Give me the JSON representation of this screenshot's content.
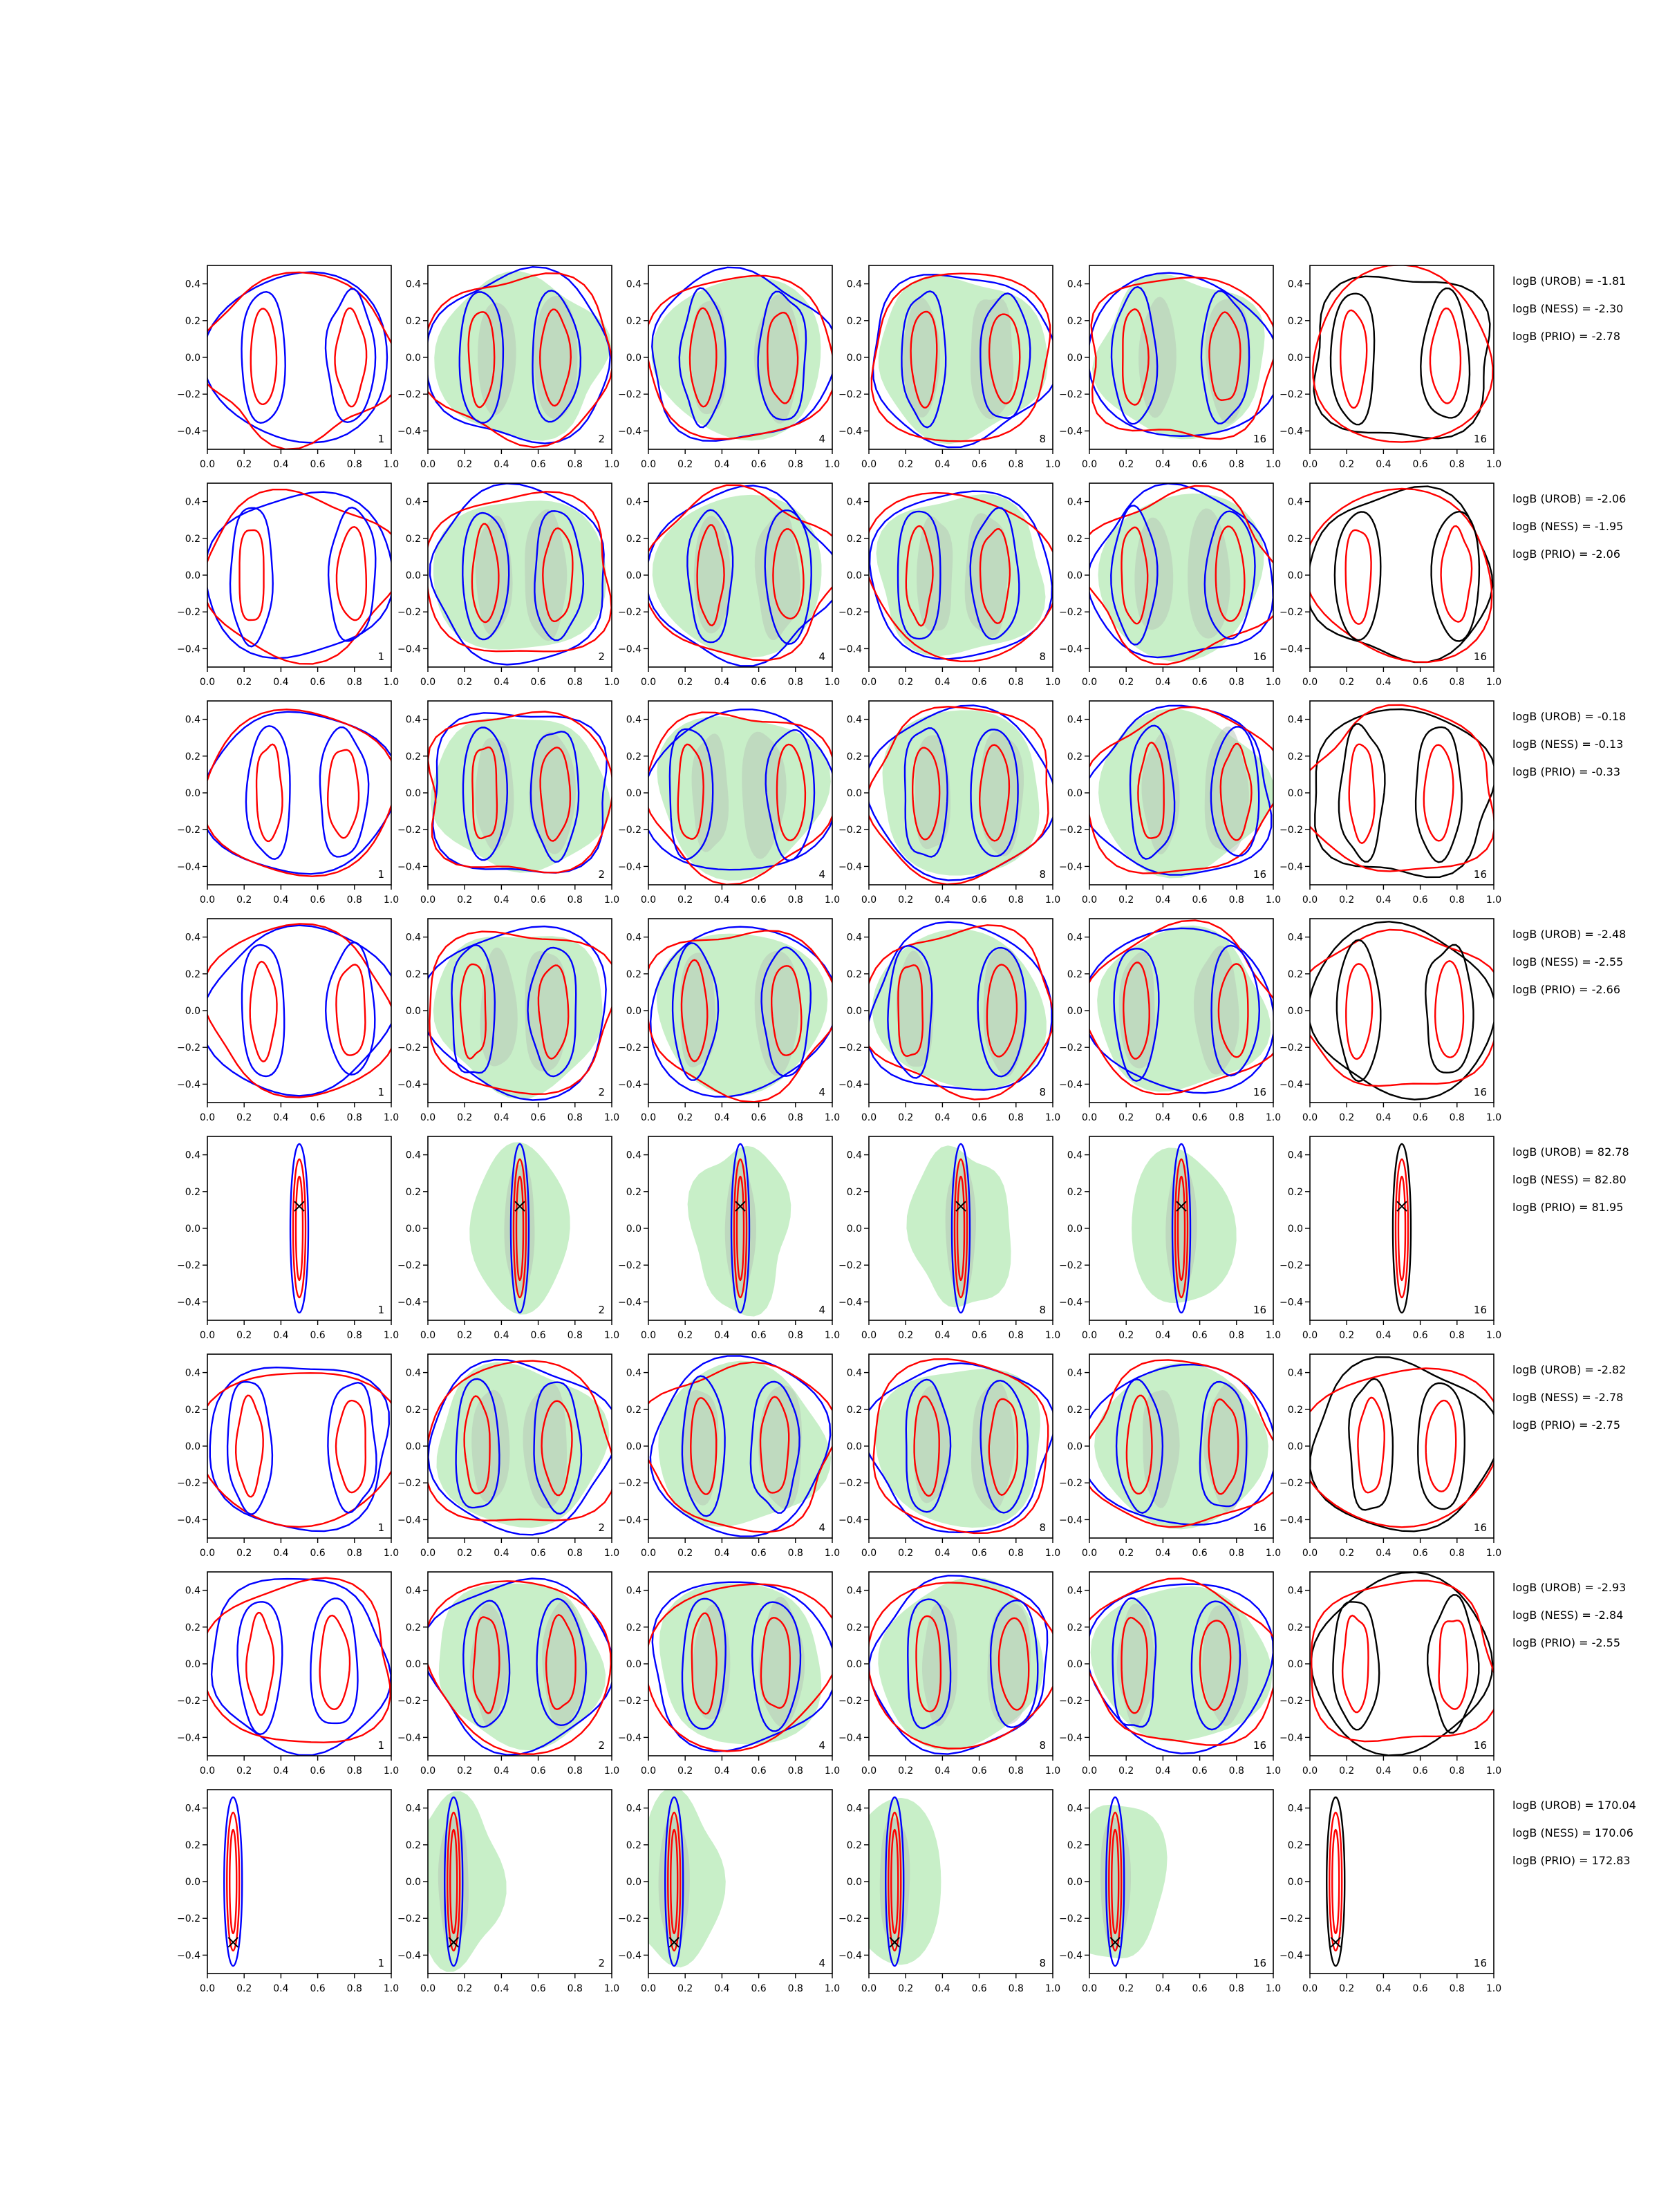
{
  "chart_data": {
    "type": "contour-grid",
    "rows": 8,
    "cols": 6,
    "xlim": [
      0,
      1
    ],
    "ylim": [
      -0.5,
      0.5
    ],
    "xticks": [
      "0.0",
      "0.2",
      "0.4",
      "0.6",
      "0.8",
      "1.0"
    ],
    "yticks": [
      "0.4",
      "0.2",
      "0.0",
      "−0.2",
      "−0.4"
    ],
    "panel_labels": [
      "1",
      "2",
      "4",
      "8",
      "16",
      "16"
    ],
    "colors": {
      "blue": "#0000ff",
      "red": "#ff0000",
      "black": "#000000",
      "green_fill": "#c8efc8",
      "gray_fill": "#b8c8b8"
    },
    "row_annotations": [
      [
        "logB (UROB) = -1.81",
        "logB (NESS) = -2.30",
        "logB (PRIO) = -2.78"
      ],
      [
        "logB (UROB) = -2.06",
        "logB (NESS) = -1.95",
        "logB (PRIO) = -2.06"
      ],
      [
        "logB (UROB) = -0.18",
        "logB (NESS) = -0.13",
        "logB (PRIO) = -0.33"
      ],
      [
        "logB (UROB) = -2.48",
        "logB (NESS) = -2.55",
        "logB (PRIO) = -2.66"
      ],
      [
        "logB (UROB) = 82.78",
        "logB (NESS) = 82.80",
        "logB (PRIO) = 81.95"
      ],
      [
        "logB (UROB) = -2.82",
        "logB (NESS) = -2.78",
        "logB (PRIO) = -2.75"
      ],
      [
        "logB (UROB) = -2.93",
        "logB (NESS) = -2.84",
        "logB (PRIO) = -2.55"
      ],
      [
        "logB (UROB) = 170.04",
        "logB (NESS) = 170.06",
        "logB (PRIO) = 172.83"
      ]
    ],
    "markers": [
      {
        "row": 5,
        "x": 0.5,
        "y": 0.12
      },
      {
        "row": 8,
        "x": 0.14,
        "y": -0.33
      }
    ]
  }
}
